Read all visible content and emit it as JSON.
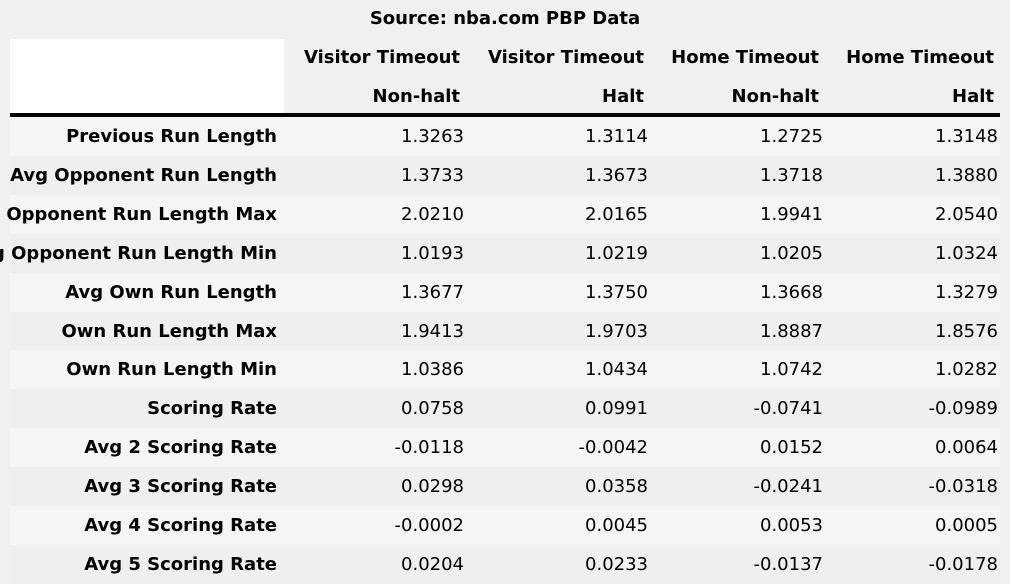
{
  "source": "Source: nba.com PBP Data",
  "columns": [
    {
      "line1": "Visitor Timeout",
      "line2": "Non-halt"
    },
    {
      "line1": "Visitor Timeout",
      "line2": "Halt"
    },
    {
      "line1": "Home Timeout",
      "line2": "Non-halt"
    },
    {
      "line1": "Home Timeout",
      "line2": "Halt"
    }
  ],
  "rows": [
    {
      "label": "Previous Run Length",
      "values": [
        "1.3263",
        "1.3114",
        "1.2725",
        "1.3148"
      ]
    },
    {
      "label": "Avg Opponent Run Length",
      "values": [
        "1.3733",
        "1.3673",
        "1.3718",
        "1.3880"
      ]
    },
    {
      "label": "Avg Opponent Run Length Max",
      "values": [
        "2.0210",
        "2.0165",
        "1.9941",
        "2.0540"
      ]
    },
    {
      "label": "Avg Opponent Run Length Min",
      "values": [
        "1.0193",
        "1.0219",
        "1.0205",
        "1.0324"
      ]
    },
    {
      "label": "Avg Own Run Length",
      "values": [
        "1.3677",
        "1.3750",
        "1.3668",
        "1.3279"
      ]
    },
    {
      "label": "Own Run Length Max",
      "values": [
        "1.9413",
        "1.9703",
        "1.8887",
        "1.8576"
      ]
    },
    {
      "label": "Own Run Length Min",
      "values": [
        "1.0386",
        "1.0434",
        "1.0742",
        "1.0282"
      ]
    },
    {
      "label": "Scoring Rate",
      "values": [
        "0.0758",
        "0.0991",
        "-0.0741",
        "-0.0989"
      ]
    },
    {
      "label": "Avg 2 Scoring Rate",
      "values": [
        "-0.0118",
        "-0.0042",
        "0.0152",
        "0.0064"
      ]
    },
    {
      "label": "Avg 3 Scoring Rate",
      "values": [
        "0.0298",
        "0.0358",
        "-0.0241",
        "-0.0318"
      ]
    },
    {
      "label": "Avg 4 Scoring Rate",
      "values": [
        "-0.0002",
        "0.0045",
        "0.0053",
        "0.0005"
      ]
    },
    {
      "label": "Avg 5 Scoring Rate",
      "values": [
        "0.0204",
        "0.0233",
        "-0.0137",
        "-0.0178"
      ]
    }
  ],
  "chart_data": {
    "type": "table",
    "title": "Source: nba.com PBP Data",
    "columns": [
      "Visitor Timeout Non-halt",
      "Visitor Timeout Halt",
      "Home Timeout Non-halt",
      "Home Timeout Halt"
    ],
    "row_labels": [
      "Previous Run Length",
      "Avg Opponent Run Length",
      "Avg Opponent Run Length Max",
      "Avg Opponent Run Length Min",
      "Avg Own Run Length",
      "Own Run Length Max",
      "Own Run Length Min",
      "Scoring Rate",
      "Avg 2 Scoring Rate",
      "Avg 3 Scoring Rate",
      "Avg 4 Scoring Rate",
      "Avg 5 Scoring Rate"
    ],
    "values": [
      [
        1.3263,
        1.3114,
        1.2725,
        1.3148
      ],
      [
        1.3733,
        1.3673,
        1.3718,
        1.388
      ],
      [
        2.021,
        2.0165,
        1.9941,
        2.054
      ],
      [
        1.0193,
        1.0219,
        1.0205,
        1.0324
      ],
      [
        1.3677,
        1.375,
        1.3668,
        1.3279
      ],
      [
        1.9413,
        1.9703,
        1.8887,
        1.8576
      ],
      [
        1.0386,
        1.0434,
        1.0742,
        1.0282
      ],
      [
        0.0758,
        0.0991,
        -0.0741,
        -0.0989
      ],
      [
        -0.0118,
        -0.0042,
        0.0152,
        0.0064
      ],
      [
        0.0298,
        0.0358,
        -0.0241,
        -0.0318
      ],
      [
        -0.0002,
        0.0045,
        0.0053,
        0.0005
      ],
      [
        0.0204,
        0.0233,
        -0.0137,
        -0.0178
      ]
    ]
  }
}
